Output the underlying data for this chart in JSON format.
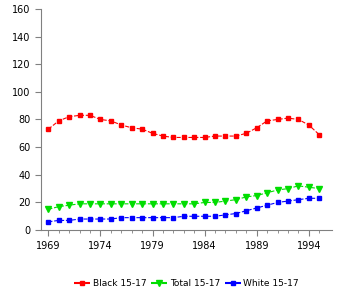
{
  "years": [
    1969,
    1970,
    1971,
    1972,
    1973,
    1974,
    1975,
    1976,
    1977,
    1978,
    1979,
    1980,
    1981,
    1982,
    1983,
    1984,
    1985,
    1986,
    1987,
    1988,
    1989,
    1990,
    1991,
    1992,
    1993,
    1994,
    1995
  ],
  "black": [
    73,
    79,
    82,
    83,
    83,
    80,
    79,
    76,
    74,
    73,
    70,
    68,
    67,
    67,
    67,
    67,
    68,
    68,
    68,
    70,
    74,
    79,
    80,
    81,
    80,
    76,
    69
  ],
  "total": [
    15,
    17,
    18,
    19,
    19,
    19,
    19,
    19,
    19,
    19,
    19,
    19,
    19,
    19,
    19,
    20,
    20,
    21,
    22,
    24,
    25,
    27,
    29,
    30,
    32,
    31,
    30
  ],
  "white": [
    6,
    7,
    7,
    8,
    8,
    8,
    8,
    9,
    9,
    9,
    9,
    9,
    9,
    10,
    10,
    10,
    10,
    11,
    12,
    14,
    16,
    18,
    20,
    21,
    22,
    23,
    23
  ],
  "black_color": "#ff0000",
  "total_color": "#00dd00",
  "white_color": "#0000ff",
  "ylim": [
    0,
    160
  ],
  "yticks": [
    0,
    20,
    40,
    60,
    80,
    100,
    120,
    140,
    160
  ],
  "xticks": [
    1969,
    1974,
    1979,
    1984,
    1989,
    1994
  ],
  "xlim": [
    1968.3,
    1996.2
  ],
  "legend_labels": [
    "Black 15-17",
    "Total 15-17",
    "White 15-17"
  ],
  "background_color": "#ffffff",
  "axis_color": "#808080",
  "tick_labelsize": 7,
  "legend_fontsize": 6.5
}
